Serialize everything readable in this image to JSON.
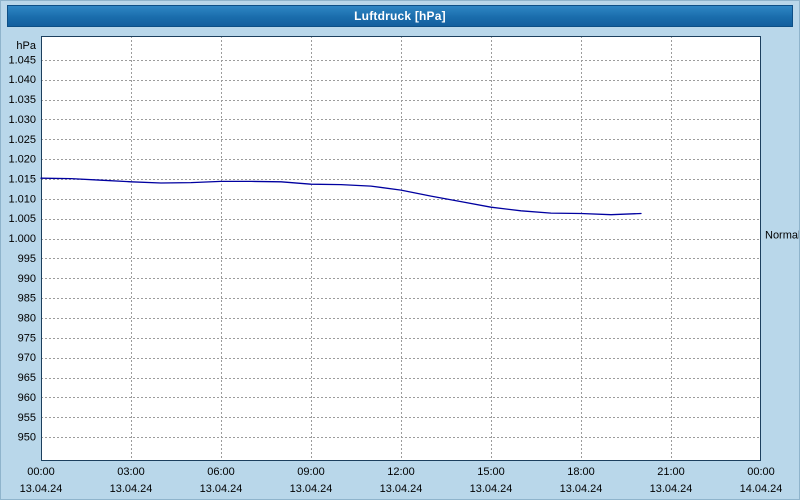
{
  "window": {
    "title": "Luftdruck [hPa]"
  },
  "colors": {
    "titlebar": "#1b74b6",
    "titlebar_text": "#ffffff",
    "background": "#b9d7ea",
    "plot_background": "#ffffff",
    "grid": "#9c9c9c",
    "frame": "#1c3f5e",
    "line": "#0000a0",
    "label_text": "#000000"
  },
  "chart_data": {
    "type": "line",
    "title": "Luftdruck [hPa]",
    "y_unit": "hPa",
    "ylabel": "Luftdruck",
    "grid": "dashed",
    "y_range": [
      944,
      1051
    ],
    "x_range_hours": [
      0,
      24
    ],
    "y_ticks": [
      {
        "value": 1045,
        "label": "1.045"
      },
      {
        "value": 1040,
        "label": "1.040"
      },
      {
        "value": 1035,
        "label": "1.035"
      },
      {
        "value": 1030,
        "label": "1.030"
      },
      {
        "value": 1025,
        "label": "1.025"
      },
      {
        "value": 1020,
        "label": "1.020"
      },
      {
        "value": 1015,
        "label": "1.015"
      },
      {
        "value": 1010,
        "label": "1.010"
      },
      {
        "value": 1005,
        "label": "1.005"
      },
      {
        "value": 1000,
        "label": "1.000"
      },
      {
        "value": 995,
        "label": "995"
      },
      {
        "value": 990,
        "label": "990"
      },
      {
        "value": 985,
        "label": "985"
      },
      {
        "value": 980,
        "label": "980"
      },
      {
        "value": 975,
        "label": "975"
      },
      {
        "value": 970,
        "label": "970"
      },
      {
        "value": 965,
        "label": "965"
      },
      {
        "value": 960,
        "label": "960"
      },
      {
        "value": 955,
        "label": "955"
      },
      {
        "value": 950,
        "label": "950"
      }
    ],
    "x_ticks": [
      {
        "hour": 0,
        "time": "00:00",
        "date": "13.04.24"
      },
      {
        "hour": 3,
        "time": "03:00",
        "date": "13.04.24"
      },
      {
        "hour": 6,
        "time": "06:00",
        "date": "13.04.24"
      },
      {
        "hour": 9,
        "time": "09:00",
        "date": "13.04.24"
      },
      {
        "hour": 12,
        "time": "12:00",
        "date": "13.04.24"
      },
      {
        "hour": 15,
        "time": "15:00",
        "date": "13.04.24"
      },
      {
        "hour": 18,
        "time": "18:00",
        "date": "13.04.24"
      },
      {
        "hour": 21,
        "time": "21:00",
        "date": "13.04.24"
      },
      {
        "hour": 24,
        "time": "00:00",
        "date": "14.04.24"
      }
    ],
    "series": [
      {
        "name": "Luftdruck",
        "color": "#0000a0",
        "points": [
          [
            0,
            1015.2
          ],
          [
            1,
            1015.1
          ],
          [
            2,
            1014.7
          ],
          [
            3,
            1014.3
          ],
          [
            4,
            1014.0
          ],
          [
            5,
            1014.1
          ],
          [
            6,
            1014.4
          ],
          [
            7,
            1014.4
          ],
          [
            8,
            1014.3
          ],
          [
            9,
            1013.7
          ],
          [
            10,
            1013.6
          ],
          [
            11,
            1013.2
          ],
          [
            12,
            1012.2
          ],
          [
            13,
            1010.7
          ],
          [
            14,
            1009.3
          ],
          [
            15,
            1007.9
          ],
          [
            16,
            1007.0
          ],
          [
            17,
            1006.4
          ],
          [
            18,
            1006.3
          ],
          [
            19,
            1006.0
          ],
          [
            20,
            1006.3
          ]
        ]
      }
    ],
    "annotations": [
      {
        "text": "Normal",
        "value": 1001,
        "side": "right"
      }
    ],
    "legend_position": "none"
  }
}
